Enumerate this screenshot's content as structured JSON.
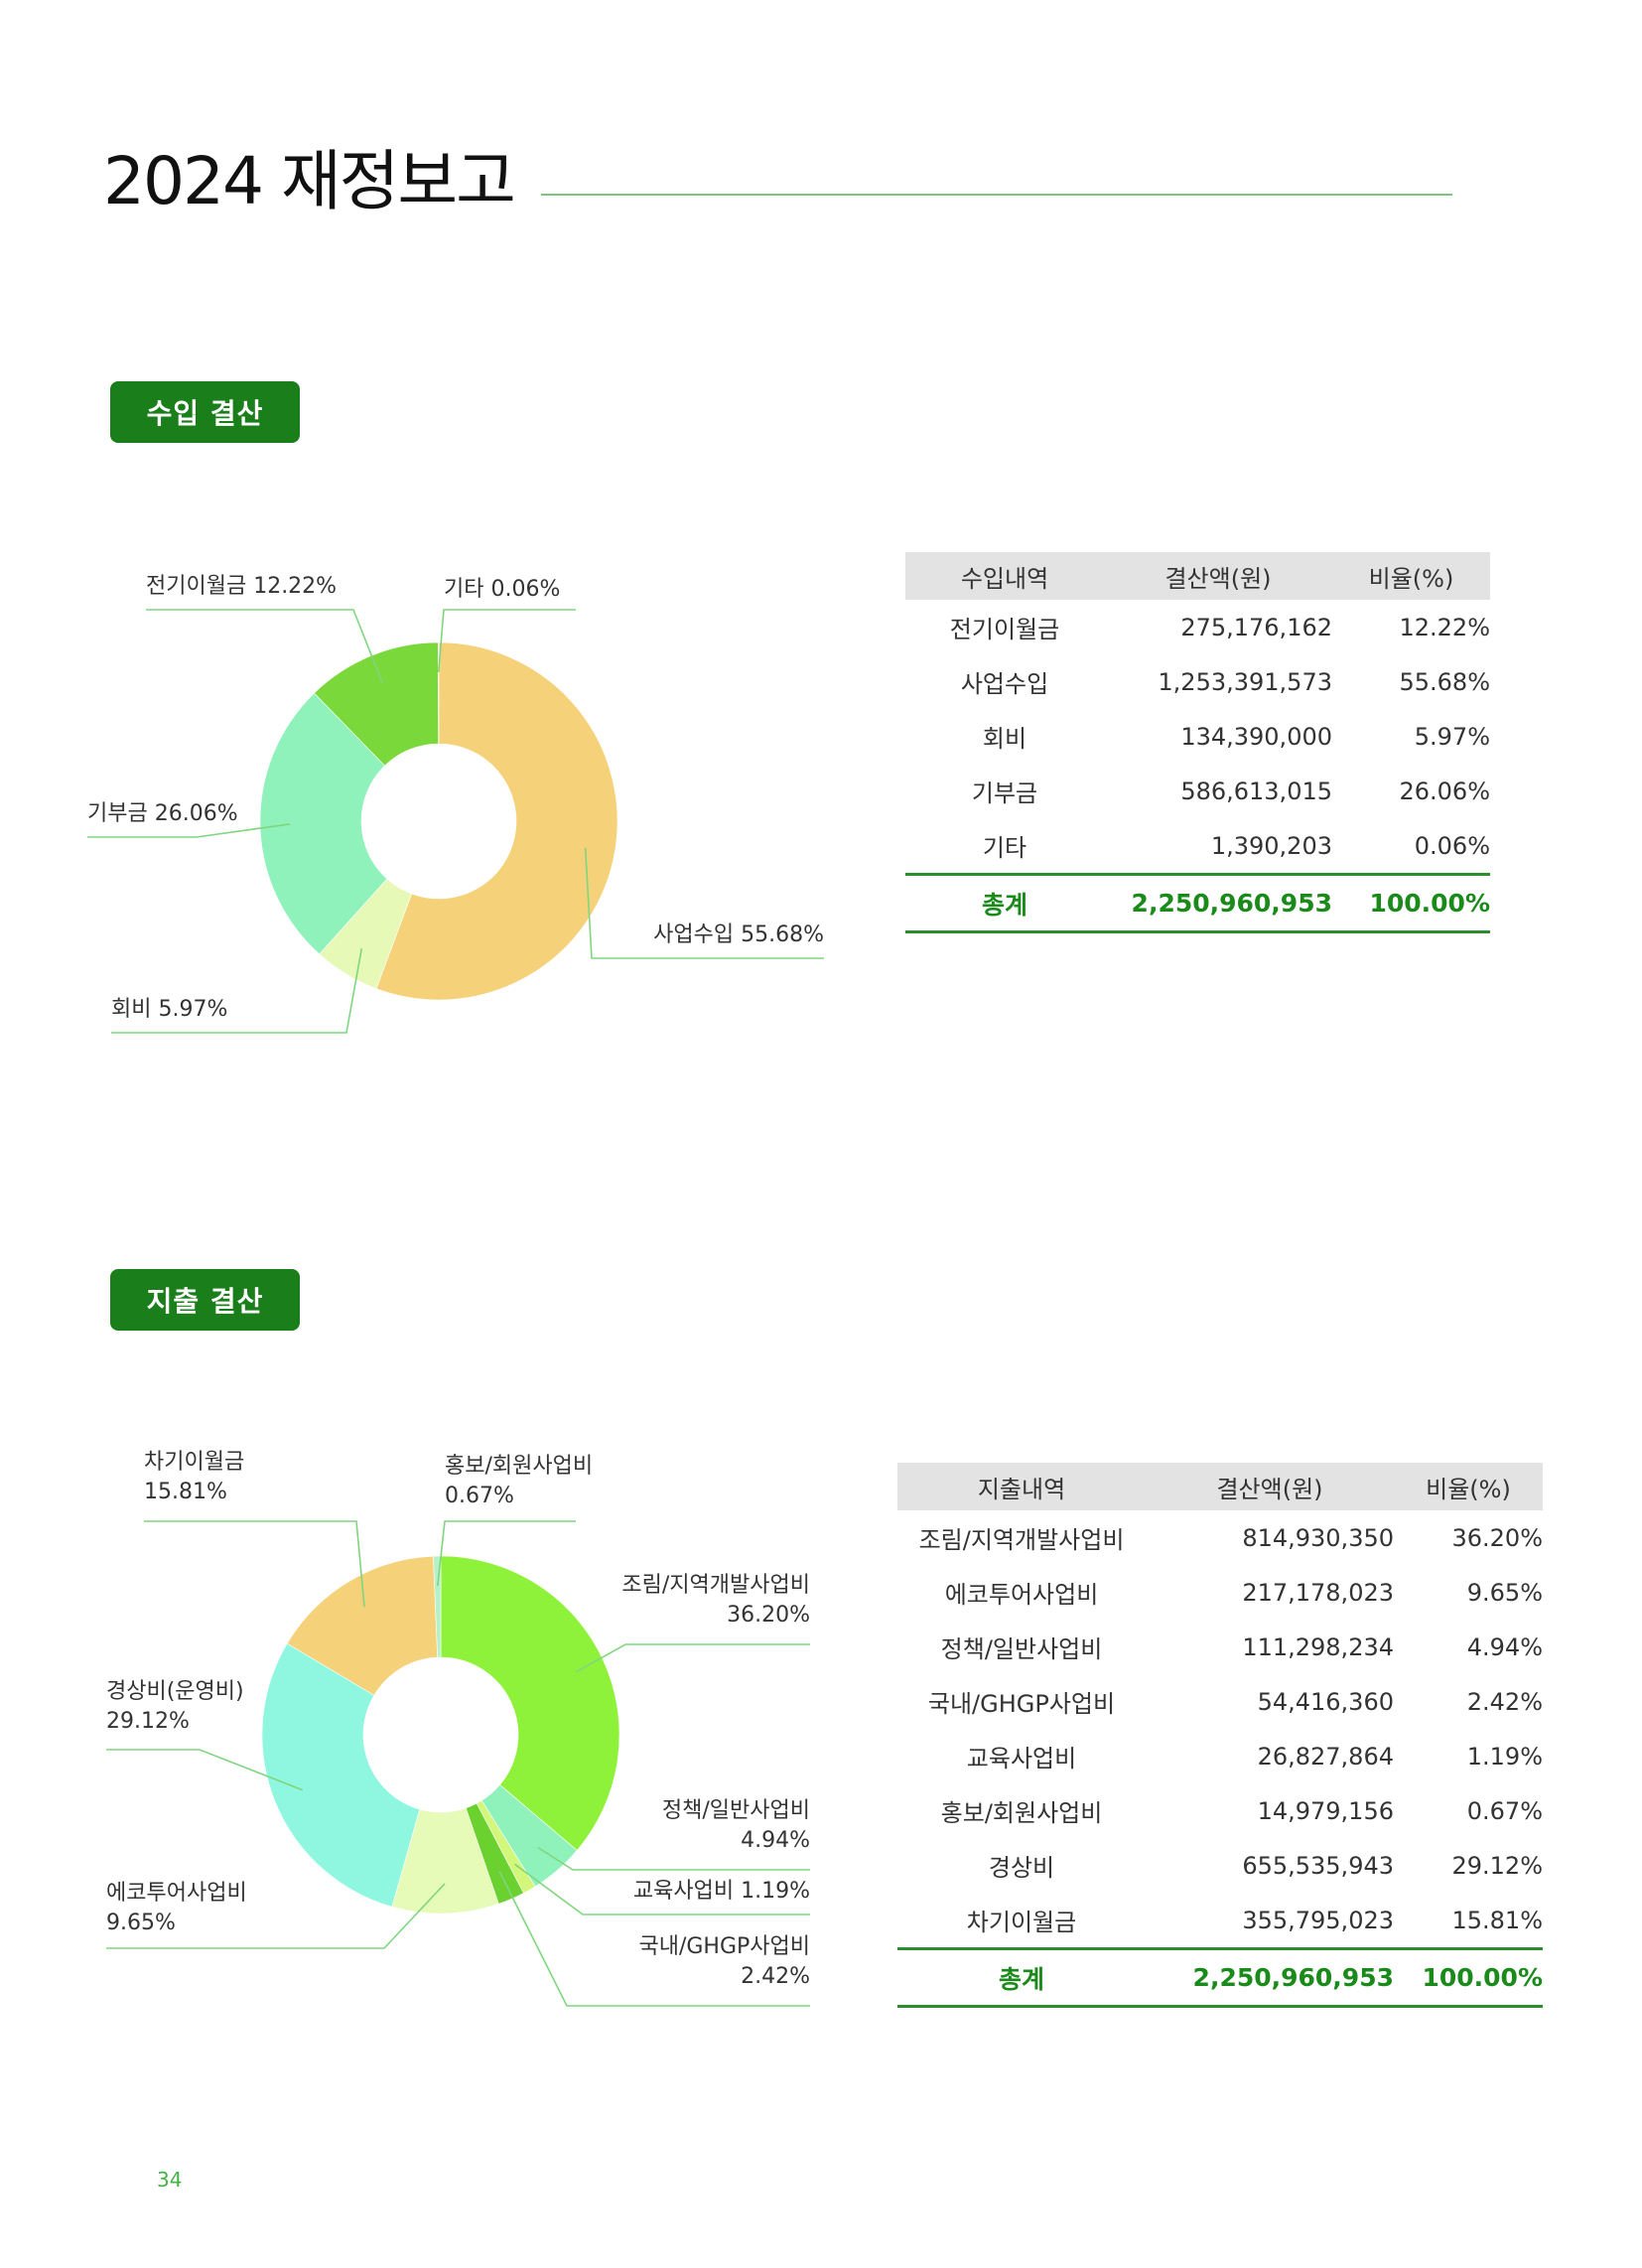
{
  "page": {
    "title": "2024 재정보고",
    "page_number": "34"
  },
  "income": {
    "badge": "수입 결산",
    "table": {
      "headers": [
        "수입내역",
        "결산액(원)",
        "비율(%)"
      ],
      "rows": [
        {
          "name": "전기이월금",
          "amount": "275,176,162",
          "pct": "12.22%"
        },
        {
          "name": "사업수입",
          "amount": "1,253,391,573",
          "pct": "55.68%"
        },
        {
          "name": "회비",
          "amount": "134,390,000",
          "pct": "5.97%"
        },
        {
          "name": "기부금",
          "amount": "586,613,015",
          "pct": "26.06%"
        },
        {
          "name": "기타",
          "amount": "1,390,203",
          "pct": "0.06%"
        }
      ],
      "total": {
        "name": "총계",
        "amount": "2,250,960,953",
        "pct": "100.00%"
      }
    }
  },
  "expense": {
    "badge": "지출 결산",
    "table": {
      "headers": [
        "지출내역",
        "결산액(원)",
        "비율(%)"
      ],
      "rows": [
        {
          "name": "조림/지역개발사업비",
          "amount": "814,930,350",
          "pct": "36.20%"
        },
        {
          "name": "에코투어사업비",
          "amount": "217,178,023",
          "pct": "9.65%"
        },
        {
          "name": "정책/일반사업비",
          "amount": "111,298,234",
          "pct": "4.94%"
        },
        {
          "name": "국내/GHGP사업비",
          "amount": "54,416,360",
          "pct": "2.42%"
        },
        {
          "name": "교육사업비",
          "amount": "26,827,864",
          "pct": "1.19%"
        },
        {
          "name": "홍보/회원사업비",
          "amount": "14,979,156",
          "pct": "0.67%"
        },
        {
          "name": "경상비",
          "amount": "655,535,943",
          "pct": "29.12%"
        },
        {
          "name": "차기이월금",
          "amount": "355,795,023",
          "pct": "15.81%"
        }
      ],
      "total": {
        "name": "총계",
        "amount": "2,250,960,953",
        "pct": "100.00%"
      }
    }
  },
  "chart_data": [
    {
      "type": "pie",
      "donut": true,
      "start": "top, clockwise",
      "slices": [
        {
          "label": "사업수입 55.68%",
          "value": 55.68,
          "color": "#f5d27a"
        },
        {
          "label": "회비 5.97%",
          "value": 5.97,
          "color": "#e6f9b6"
        },
        {
          "label": "기부금 26.06%",
          "value": 26.06,
          "color": "#8ff2bb"
        },
        {
          "label": "전기이월금 12.22%",
          "value": 12.22,
          "color": "#7ad83a"
        },
        {
          "label": "기타 0.06%",
          "value": 0.06,
          "color": "#9ad8e8"
        }
      ]
    },
    {
      "type": "pie",
      "donut": true,
      "start": "top, clockwise",
      "slices": [
        {
          "label": "조림/지역개발사업비\n36.20%",
          "value": 36.2,
          "color": "#8ff23a"
        },
        {
          "label": "정책/일반사업비\n4.94%",
          "value": 4.94,
          "color": "#8ff2bb"
        },
        {
          "label": "교육사업비 1.19%",
          "value": 1.19,
          "color": "#d2f77a"
        },
        {
          "label": "국내/GHGP사업비\n2.42%",
          "value": 2.42,
          "color": "#6ad12e"
        },
        {
          "label": "에코투어사업비\n9.65%",
          "value": 9.65,
          "color": "#e6fbb8"
        },
        {
          "label": "경상비(운영비)\n29.12%",
          "value": 29.12,
          "color": "#8ff7e0"
        },
        {
          "label": "차기이월금\n15.81%",
          "value": 15.81,
          "color": "#f5d27a"
        },
        {
          "label": "홍보/회원사업비\n0.67%",
          "value": 0.67,
          "color": "#b6f0c8"
        }
      ]
    }
  ]
}
